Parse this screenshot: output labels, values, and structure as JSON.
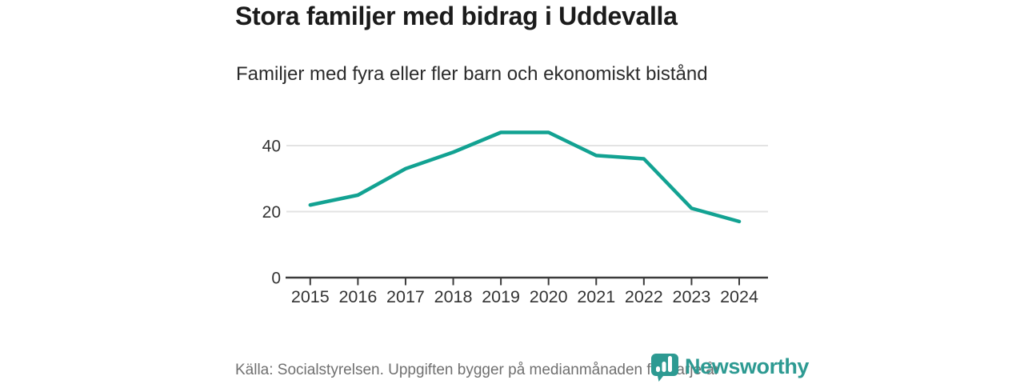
{
  "header": {
    "title": "Stora familjer med bidrag i Uddevalla",
    "subtitle": "Familjer med fyra eller fler barn och ekonomiskt bistånd"
  },
  "chart_data": {
    "type": "line",
    "title": "Stora familjer med bidrag i Uddevalla",
    "subtitle": "Familjer med fyra eller fler barn och ekonomiskt bistånd",
    "categories": [
      "2015",
      "2016",
      "2017",
      "2018",
      "2019",
      "2020",
      "2021",
      "2022",
      "2023",
      "2024"
    ],
    "series": [
      {
        "name": "Familjer med fyra eller fler barn och ekonomiskt bistånd",
        "values": [
          22,
          25,
          33,
          38,
          44,
          44,
          37,
          36,
          21,
          17
        ]
      }
    ],
    "xlabel": "",
    "ylabel": "",
    "yticks": [
      0,
      20,
      40
    ],
    "ylim": [
      0,
      50
    ],
    "grid": "horizontal",
    "legend_position": "none",
    "line_color": "#12a292",
    "grid_color": "#e3e3e3",
    "axis_color": "#3b3b3b",
    "tick_label_color": "#333333"
  },
  "footer": {
    "source_text": "Källa: Socialstyrelsen. Uppgiften bygger på medianmånaden för varje år",
    "brand": {
      "name": "Newsworthy",
      "color": "#2d9a92",
      "icon": "bar-chart-pin-icon"
    }
  }
}
